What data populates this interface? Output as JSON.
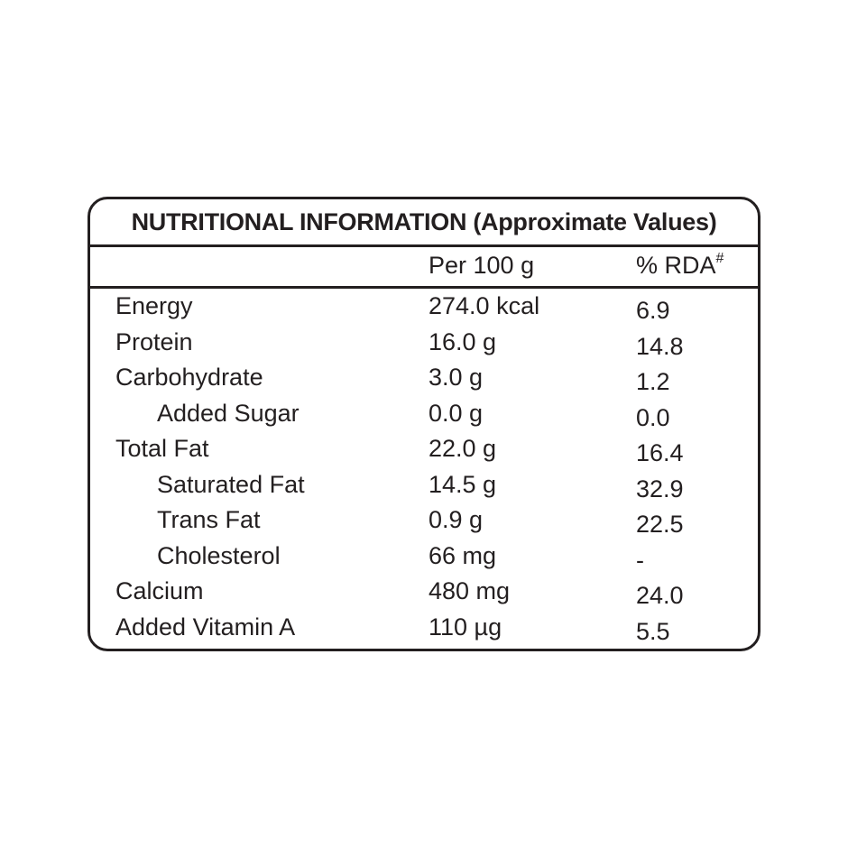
{
  "label": {
    "title": "NUTRITIONAL INFORMATION (Approximate Values)",
    "columns": {
      "per": "Per 100 g",
      "rda": "% RDA",
      "rda_footnote_marker": "#"
    },
    "rows": [
      {
        "name": "Energy",
        "indent": false,
        "per": "274.0 kcal",
        "rda": "6.9"
      },
      {
        "name": "Protein",
        "indent": false,
        "per": "16.0 g",
        "rda": "14.8"
      },
      {
        "name": "Carbohydrate",
        "indent": false,
        "per": "3.0 g",
        "rda": "1.2"
      },
      {
        "name": "Added Sugar",
        "indent": true,
        "per": "0.0 g",
        "rda": "0.0"
      },
      {
        "name": "Total Fat",
        "indent": false,
        "per": "22.0 g",
        "rda": "16.4"
      },
      {
        "name": "Saturated Fat",
        "indent": true,
        "per": "14.5 g",
        "rda": "32.9"
      },
      {
        "name": "Trans Fat",
        "indent": true,
        "per": "0.9 g",
        "rda": "22.5"
      },
      {
        "name": "Cholesterol",
        "indent": true,
        "per": "66 mg",
        "rda": "-"
      },
      {
        "name": "Calcium",
        "indent": false,
        "per": "480 mg",
        "rda": "24.0"
      },
      {
        "name": "Added Vitamin A",
        "indent": false,
        "per": "110 µg",
        "rda": "5.5"
      }
    ]
  },
  "colors": {
    "background": "#ffffff",
    "text": "#231f20",
    "border": "#231f20"
  }
}
